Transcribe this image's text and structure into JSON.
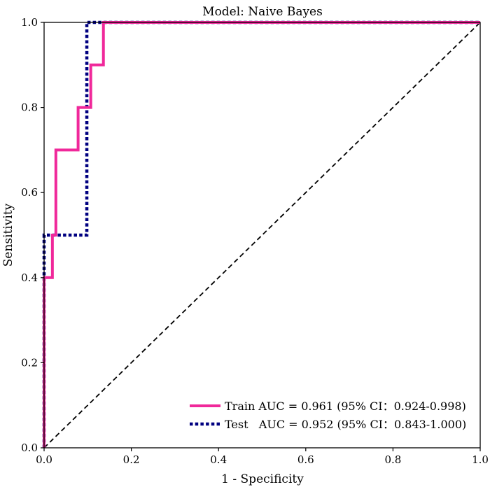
{
  "chart_data": {
    "type": "line",
    "title": "Model: Naive Bayes",
    "xlabel": "1 - Specificity",
    "ylabel": "Sensitivity",
    "xlim": [
      0.0,
      1.0
    ],
    "ylim": [
      0.0,
      1.0
    ],
    "xticks": [
      "0.0",
      "0.2",
      "0.4",
      "0.6",
      "0.8",
      "1.0"
    ],
    "yticks": [
      "0.0",
      "0.2",
      "0.4",
      "0.6",
      "0.8",
      "1.0"
    ],
    "grid": false,
    "legend_position": "lower-right",
    "series": [
      {
        "name": "Train",
        "legend_label": "Train AUC = 0.961 (95% CI：0.924-0.998)",
        "color": "#f0289a",
        "line_style": "solid",
        "x": [
          0.0,
          0.0,
          0.0,
          0.0,
          0.019,
          0.019,
          0.027,
          0.027,
          0.078,
          0.078,
          0.107,
          0.107,
          0.136,
          0.136,
          1.0
        ],
        "y": [
          0.0,
          0.4,
          0.4,
          0.4,
          0.4,
          0.5,
          0.5,
          0.7,
          0.7,
          0.8,
          0.8,
          0.9,
          0.9,
          1.0,
          1.0
        ]
      },
      {
        "name": "Test",
        "legend_label": "Test   AUC = 0.952 (95% CI：0.843-1.000)",
        "color": "#000080",
        "line_style": "dotted",
        "x": [
          0.0,
          0.0,
          0.098,
          0.098,
          0.098,
          1.0
        ],
        "y": [
          0.0,
          0.5,
          0.5,
          1.0,
          1.0,
          1.0
        ]
      },
      {
        "name": "Reference",
        "color": "#000000",
        "line_style": "dashed",
        "x": [
          0.0,
          1.0
        ],
        "y": [
          0.0,
          1.0
        ]
      }
    ]
  }
}
